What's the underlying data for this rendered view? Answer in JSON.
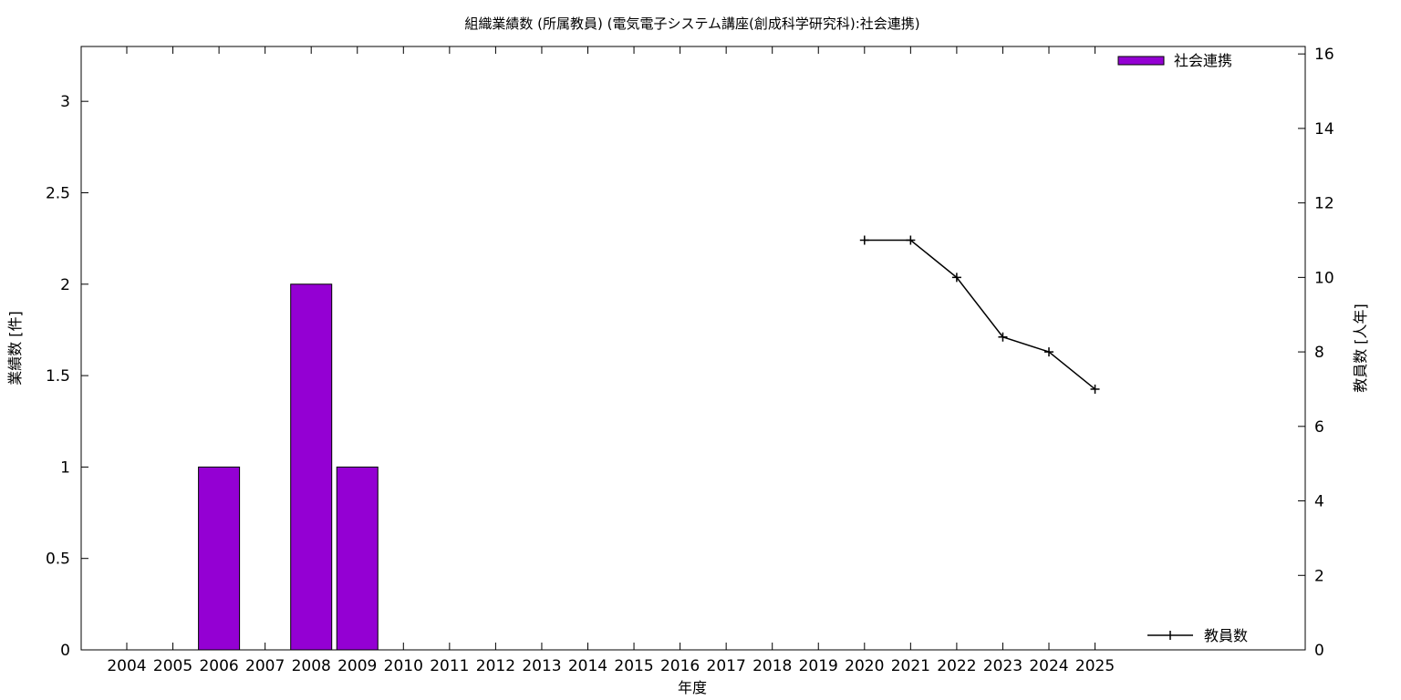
{
  "chart_data": {
    "type": "bar",
    "title": "組織業績数 (所属教員) (電気電子システム講座(創成科学研究科):社会連携)",
    "xlabel": "年度",
    "ylabel": "業績数 [件]",
    "y2label": "教員数 [人年]",
    "categories": [
      "2004",
      "2005",
      "2006",
      "2007",
      "2008",
      "2009",
      "2010",
      "2011",
      "2012",
      "2013",
      "2014",
      "2015",
      "2016",
      "2017",
      "2018",
      "2019",
      "2020",
      "2021",
      "2022",
      "2023",
      "2024",
      "2025"
    ],
    "ylim": [
      0,
      3.3
    ],
    "yticks": [
      0,
      0.5,
      1,
      1.5,
      2,
      2.5,
      3
    ],
    "ytick_labels": [
      "0",
      "0.5",
      "1",
      "1.5",
      "2",
      "2.5",
      "3"
    ],
    "y2lim": [
      0,
      16.2
    ],
    "y2ticks": [
      0,
      2,
      4,
      6,
      8,
      10,
      12,
      14,
      16
    ],
    "y2tick_labels": [
      "0",
      "2",
      "4",
      "6",
      "8",
      "10",
      "12",
      "14",
      "16"
    ],
    "grid": false,
    "series": [
      {
        "name": "社会連携",
        "type": "bar",
        "axis": "left",
        "color": "#9400d3",
        "values": [
          0,
          0,
          1,
          0,
          2,
          1,
          0,
          0,
          0,
          0,
          0,
          0,
          0,
          0,
          0,
          0,
          0,
          0,
          0,
          0,
          0,
          0
        ]
      },
      {
        "name": "教員数",
        "type": "line",
        "axis": "right",
        "color": "#000000",
        "x": [
          "2020",
          "2021",
          "2022",
          "2023",
          "2024",
          "2025"
        ],
        "values": [
          11,
          11,
          10,
          8.4,
          8,
          7
        ]
      }
    ],
    "legend": [
      "top-right",
      "bottom-right"
    ]
  }
}
